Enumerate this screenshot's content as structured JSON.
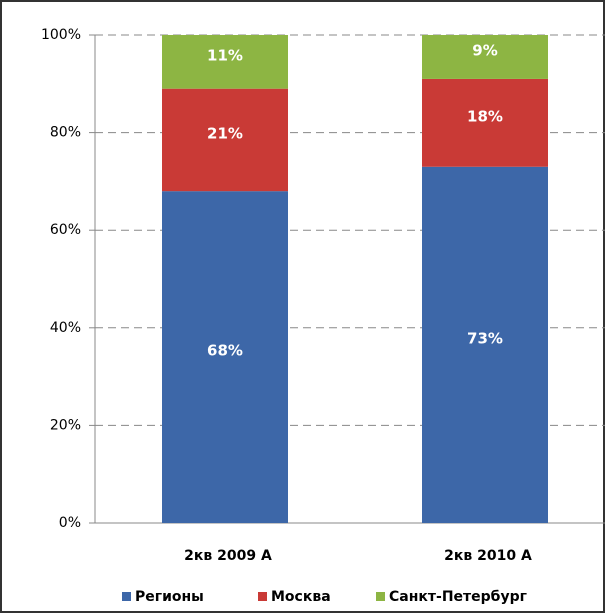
{
  "chart_data": {
    "type": "stacked_bar",
    "categories": [
      "2кв 2009 А",
      "2кв 2010 А"
    ],
    "series": [
      {
        "name": "Регионы",
        "color": "#3d67a8",
        "values": [
          68,
          73
        ],
        "value_labels": [
          "68%",
          "73%"
        ]
      },
      {
        "name": "Москва",
        "color": "#c93a36",
        "values": [
          21,
          18
        ],
        "value_labels": [
          "21%",
          "18%"
        ]
      },
      {
        "name": "Санкт-Петербург",
        "color": "#8db543",
        "values": [
          11,
          9
        ],
        "value_labels": [
          "11%",
          "9%"
        ]
      }
    ],
    "ylim": [
      0,
      100
    ],
    "yticks": [
      {
        "value": 0,
        "label": "0%"
      },
      {
        "value": 20,
        "label": "20%"
      },
      {
        "value": 40,
        "label": "40%"
      },
      {
        "value": 60,
        "label": "60%"
      },
      {
        "value": 80,
        "label": "80%"
      },
      {
        "value": 100,
        "label": "100%"
      }
    ],
    "grid": true,
    "legend": "bottom"
  }
}
